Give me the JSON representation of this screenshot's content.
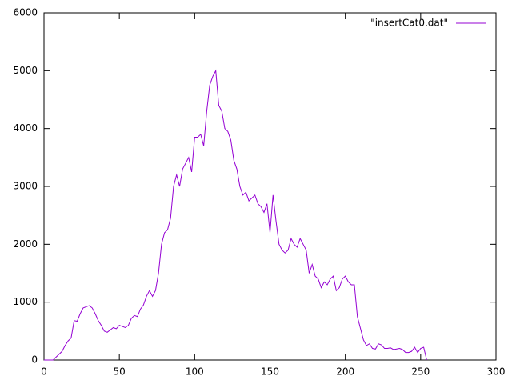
{
  "chart_data": {
    "type": "line",
    "x": [
      0,
      2,
      4,
      6,
      8,
      10,
      12,
      14,
      16,
      18,
      20,
      22,
      24,
      26,
      28,
      30,
      32,
      34,
      36,
      38,
      40,
      42,
      44,
      46,
      48,
      50,
      52,
      54,
      56,
      58,
      60,
      62,
      64,
      66,
      68,
      70,
      72,
      74,
      76,
      78,
      80,
      82,
      84,
      86,
      88,
      90,
      92,
      94,
      96,
      98,
      100,
      102,
      104,
      106,
      108,
      110,
      112,
      114,
      116,
      118,
      120,
      122,
      124,
      126,
      128,
      130,
      132,
      134,
      136,
      138,
      140,
      142,
      144,
      146,
      148,
      150,
      152,
      154,
      156,
      158,
      160,
      162,
      164,
      166,
      168,
      170,
      172,
      174,
      176,
      178,
      180,
      182,
      184,
      186,
      188,
      190,
      192,
      194,
      196,
      198,
      200,
      202,
      204,
      206,
      208,
      210,
      212,
      214,
      216,
      218,
      220,
      222,
      224,
      226,
      228,
      230,
      232,
      234,
      236,
      238,
      240,
      242,
      244,
      246,
      248,
      250,
      252,
      254
    ],
    "series": [
      {
        "name": "\"insertCat0.dat\"",
        "color": "#9400d3",
        "values": [
          0,
          0,
          0,
          0,
          50,
          100,
          150,
          250,
          330,
          380,
          680,
          670,
          800,
          900,
          920,
          940,
          900,
          800,
          680,
          600,
          500,
          480,
          520,
          560,
          540,
          600,
          580,
          560,
          600,
          720,
          770,
          750,
          880,
          950,
          1100,
          1200,
          1100,
          1200,
          1500,
          2000,
          2200,
          2250,
          2450,
          3000,
          3200,
          3000,
          3300,
          3400,
          3500,
          3250,
          3850,
          3850,
          3900,
          3700,
          4300,
          4750,
          4900,
          5000,
          4400,
          4300,
          4000,
          3950,
          3800,
          3450,
          3300,
          3000,
          2850,
          2900,
          2750,
          2800,
          2850,
          2700,
          2650,
          2550,
          2700,
          2200,
          2850,
          2400,
          2000,
          1900,
          1850,
          1900,
          2100,
          2000,
          1950,
          2100,
          2000,
          1900,
          1500,
          1650,
          1450,
          1400,
          1250,
          1350,
          1300,
          1400,
          1450,
          1200,
          1250,
          1400,
          1450,
          1350,
          1300,
          1300,
          750,
          550,
          350,
          250,
          280,
          200,
          190,
          280,
          260,
          200,
          200,
          210,
          180,
          190,
          200,
          180,
          130,
          130,
          150,
          220,
          130,
          200,
          220,
          0
        ]
      }
    ],
    "xlim": [
      0,
      300
    ],
    "xticks": [
      0,
      50,
      100,
      150,
      200,
      250,
      300
    ],
    "ylim": [
      0,
      6000
    ],
    "yticks": [
      0,
      1000,
      2000,
      3000,
      4000,
      5000,
      6000
    ],
    "legend": "top-right"
  }
}
